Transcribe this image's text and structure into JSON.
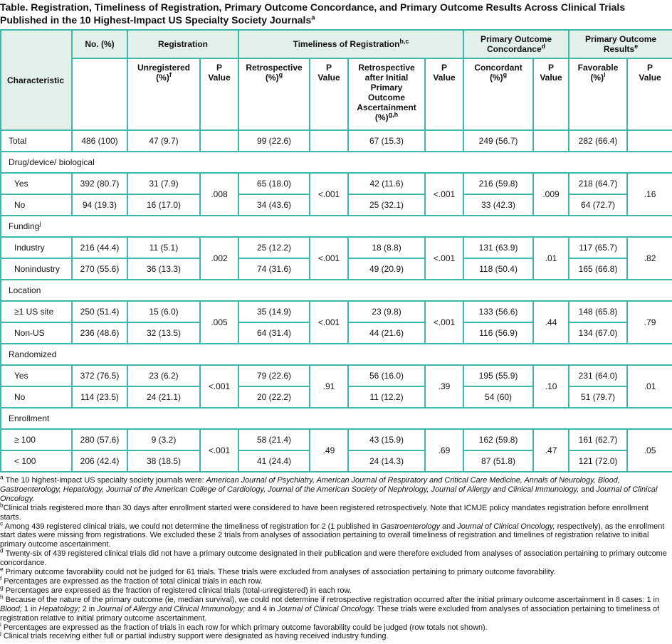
{
  "title": {
    "text": "Table. Registration, Timeliness of Registration, Primary Outcome Concordance, and Primary Outcome Results Across Clinical Trials Published in the 10 Highest-Impact US Specialty Society Journals",
    "sup": "a"
  },
  "colors": {
    "border_teal": "#3DB9AC",
    "header_bg": "#E3EFE9"
  },
  "header": {
    "characteristic": "Characteristic",
    "no_pct": "No. (%)",
    "registration": {
      "label": "Registration",
      "sup": ""
    },
    "timeliness": {
      "label": "Timeliness of Registration",
      "sup": "b,c"
    },
    "concordance": {
      "label": "Primary Outcome Concordance",
      "sup": "d"
    },
    "results": {
      "label": "Primary Outcome Results",
      "sup": "e"
    },
    "sub": {
      "p": "P\nValue",
      "unregistered": {
        "label": "Unregistered\n(%)",
        "sup": "f"
      },
      "retrospective": {
        "label": "Retrospective\n(%)",
        "sup": "g"
      },
      "retro_after": {
        "label": "Retrospective after Initial Primary Outcome Ascertainment\n(%)",
        "sup": "g,h"
      },
      "concordant": {
        "label": "Concordant\n(%)",
        "sup": "g"
      },
      "favorable": {
        "label": "Favorable\n(%)",
        "sup": "i"
      }
    }
  },
  "total": {
    "label": "Total",
    "no": "486 (100)",
    "unreg": "47 (9.7)",
    "retro": "99 (22.6)",
    "retro_after": "67 (15.3)",
    "concord": "249 (56.7)",
    "favor": "282 (66.4)"
  },
  "sections": [
    {
      "label": "Drug/device/ biological",
      "sup": "",
      "row1": {
        "label": "Yes",
        "no": "392 (80.7)",
        "unreg": "31 (7.9)",
        "retro": "65 (18.0)",
        "retro_after": "42 (11.6)",
        "concord": "216 (59.8)",
        "favor": "218 (64.7)"
      },
      "row2": {
        "label": "No",
        "no": "94 (19.3)",
        "unreg": "16 (17.0)",
        "retro": "34 (43.6)",
        "retro_after": "25 (32.1)",
        "concord": "33 (42.3)",
        "favor": "64 (72.7)"
      },
      "p": {
        "unreg": ".008",
        "retro": "<.001",
        "retro_after": "<.001",
        "concord": ".009",
        "favor": ".16"
      }
    },
    {
      "label": "Funding",
      "sup": "j",
      "row1": {
        "label": "Industry",
        "no": "216 (44.4)",
        "unreg": "11 (5.1)",
        "retro": "25 (12.2)",
        "retro_after": "18 (8.8)",
        "concord": "131 (63.9)",
        "favor": "117 (65.7)"
      },
      "row2": {
        "label": "Nonindustry",
        "no": "270 (55.6)",
        "unreg": "36 (13.3)",
        "retro": "74 (31.6)",
        "retro_after": "49 (20.9)",
        "concord": "118 (50.4)",
        "favor": "165 (66.8)"
      },
      "p": {
        "unreg": ".002",
        "retro": "<.001",
        "retro_after": "<.001",
        "concord": ".01",
        "favor": ".82"
      }
    },
    {
      "label": "Location",
      "sup": "",
      "row1": {
        "label": "≥1 US site",
        "no": "250 (51.4)",
        "unreg": "15 (6.0)",
        "retro": "35 (14.9)",
        "retro_after": "23 (9.8)",
        "concord": "133 (56.6)",
        "favor": "148 (65.8)"
      },
      "row2": {
        "label": "Non-US",
        "no": "236 (48.6)",
        "unreg": "32 (13.5)",
        "retro": "64 (31.4)",
        "retro_after": "44 (21.6)",
        "concord": "116 (56.9)",
        "favor": "134 (67.0)"
      },
      "p": {
        "unreg": ".005",
        "retro": "<.001",
        "retro_after": "<.001",
        "concord": ".44",
        "favor": ".79"
      }
    },
    {
      "label": "Randomized",
      "sup": "",
      "row1": {
        "label": "Yes",
        "no": "372 (76.5)",
        "unreg": "23 (6.2)",
        "retro": "79 (22.6)",
        "retro_after": "56 (16.0)",
        "concord": "195 (55.9)",
        "favor": "231 (64.0)"
      },
      "row2": {
        "label": "No",
        "no": "114 (23.5)",
        "unreg": "24 (21.1)",
        "retro": "20 (22.2)",
        "retro_after": "11 (12.2)",
        "concord": "54 (60)",
        "favor": "51 (79.7)"
      },
      "p": {
        "unreg": "<.001",
        "retro": ".91",
        "retro_after": ".39",
        "concord": ".10",
        "favor": ".01"
      }
    },
    {
      "label": "Enrollment",
      "sup": "",
      "row1": {
        "label": "≥ 100",
        "no": "280 (57.6)",
        "unreg": "9 (3.2)",
        "retro": "58 (21.4)",
        "retro_after": "43 (15.9)",
        "concord": "162 (59.8)",
        "favor": "161 (62.7)"
      },
      "row2": {
        "label": "< 100",
        "no": "206 (42.4)",
        "unreg": "38 (18.5)",
        "retro": "41 (24.4)",
        "retro_after": "24 (14.3)",
        "concord": "87 (51.8)",
        "favor": "121 (72.0)"
      },
      "p": {
        "unreg": "<.001",
        "retro": ".49",
        "retro_after": ".69",
        "concord": ".47",
        "favor": ".05"
      }
    }
  ],
  "footnotes": [
    {
      "marker": "a",
      "segments": [
        {
          "t": " The 10 highest-impact US specialty society journals were: ",
          "i": false
        },
        {
          "t": "American Journal of Psychiatry, American Journal of Respiratory and Critical Care Medicine, Annals of Neurology, Blood, Gastroenterology, Hepatology, Journal of the American College of Cardiology, Journal of the American Society of Nephrology, Journal of Allergy and Clinical Immunology,",
          "i": true
        },
        {
          "t": " and ",
          "i": false
        },
        {
          "t": "Journal of Clinical Oncology.",
          "i": true
        }
      ]
    },
    {
      "marker": "b",
      "segments": [
        {
          "t": "Clinical trials registered more than 30 days after enrollment started were considered to have been registered retrospectively. Note that ICMJE policy mandates registration before enrollment starts.",
          "i": false
        }
      ]
    },
    {
      "marker": "c",
      "segments": [
        {
          "t": " Among 439 registered clinical trials, we could not determine the timeliness of registration for 2 (1 published in ",
          "i": false
        },
        {
          "t": "Gastroenterology",
          "i": true
        },
        {
          "t": " and ",
          "i": false
        },
        {
          "t": "Journal of Clinical Oncology,",
          "i": true
        },
        {
          "t": " respectively), as the enrollment start dates were missing from registrations. We excluded these 2 trials from analyses of association pertaining to overall timeliness of registration and timelines of registration relative to initial primary outcome ascertainment.",
          "i": false
        }
      ]
    },
    {
      "marker": "d",
      "segments": [
        {
          "t": " Twenty-six of 439 registered clinical trials did not have a primary outcome designated in their publication and were therefore excluded from analyses of association pertaining to primary outcome concordance.",
          "i": false
        }
      ]
    },
    {
      "marker": "e",
      "segments": [
        {
          "t": " Primary outcome favorability could not be judged for 61 trials. These trials were excluded from analyses of association pertaining to primary outcome favorability.",
          "i": false
        }
      ]
    },
    {
      "marker": "f",
      "segments": [
        {
          "t": " Percentages are expressed as the fraction of total clinical trials in each row.",
          "i": false
        }
      ]
    },
    {
      "marker": "g",
      "segments": [
        {
          "t": " Percentages are expressed as the fraction of registered clinical trials (total-unregistered) in each row.",
          "i": false
        }
      ]
    },
    {
      "marker": "h",
      "segments": [
        {
          "t": " Because of the nature of the primary outcome (ie, median survival), we could not determine if retrospective registration occurred after the initial primary outcome ascertainment in 8 cases: 1 in ",
          "i": false
        },
        {
          "t": "Blood;",
          "i": true
        },
        {
          "t": " 1 in ",
          "i": false
        },
        {
          "t": "Hepatology;",
          "i": true
        },
        {
          "t": " 2 in ",
          "i": false
        },
        {
          "t": "Journal of Allergy and Clinical Immunology;",
          "i": true
        },
        {
          "t": " and 4 in ",
          "i": false
        },
        {
          "t": "Journal of Clinical Oncology.",
          "i": true
        },
        {
          "t": " These trials were excluded from analyses of association pertaining to timeliness of registration relative to initial primary outcome ascertainment.",
          "i": false
        }
      ]
    },
    {
      "marker": "i",
      "segments": [
        {
          "t": " Percentages are expressed as the fraction of trials in each row for which primary outcome favorability could be judged (row totals not shown).",
          "i": false
        }
      ]
    },
    {
      "marker": "j",
      "segments": [
        {
          "t": " Clinical trials receiving either full or partial industry support were designated as having received industry funding.",
          "i": false
        }
      ]
    }
  ]
}
